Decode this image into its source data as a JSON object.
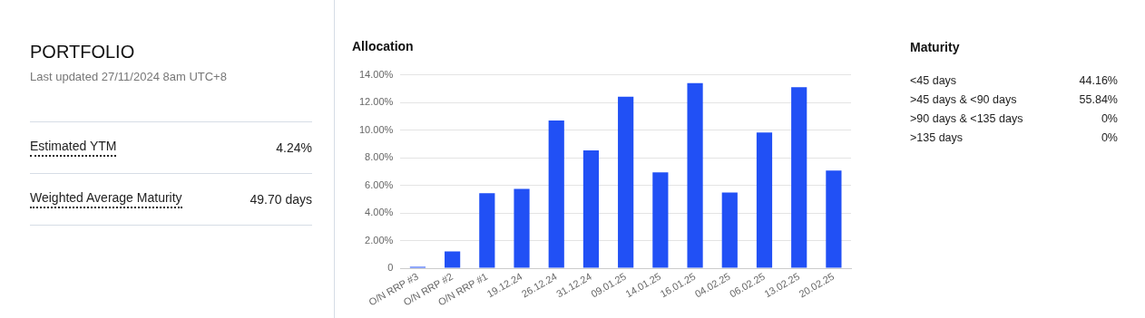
{
  "chart_data": [
    {
      "type": "other",
      "title": "PORTFOLIO",
      "subtitle": "Last updated 27/11/2024 8am UTC+8",
      "categories": [
        "Estimated YTM",
        "Weighted Average Maturity"
      ],
      "value_labels": [
        "4.24%",
        "49.70 days"
      ]
    },
    {
      "type": "bar",
      "title": "Allocation",
      "categories": [
        "O/N RRP #3",
        "O/N RRP #2",
        "O/N RRP #1",
        "19.12.24",
        "26.12.24",
        "31.12.24",
        "09.01.25",
        "14.01.25",
        "16.01.25",
        "04.02.25",
        "06.02.25",
        "13.02.25",
        "20.02.25"
      ],
      "values": [
        0.1,
        1.21,
        5.44,
        5.74,
        10.71,
        8.54,
        12.43,
        6.94,
        13.42,
        5.49,
        9.83,
        13.12,
        7.08
      ],
      "color": "#2150f5",
      "ylim": [
        0,
        14
      ],
      "yticks": [
        {
          "value": 0,
          "label": "0"
        },
        {
          "value": 2,
          "label": "2.00%"
        },
        {
          "value": 4,
          "label": "4.00%"
        },
        {
          "value": 6,
          "label": "6.00%"
        },
        {
          "value": 8,
          "label": "8.00%"
        },
        {
          "value": 10,
          "label": "10.00%"
        },
        {
          "value": 12,
          "label": "12.00%"
        },
        {
          "value": 14,
          "label": "14.00%"
        }
      ],
      "grid": "y",
      "legend": false
    },
    {
      "type": "other",
      "title": "Maturity",
      "categories": [
        "<45 days",
        ">45 days & <90 days",
        ">90 days & <135 days",
        ">135 days"
      ],
      "value_labels": [
        "44.16%",
        "55.84%",
        "0%",
        "0%"
      ]
    }
  ]
}
